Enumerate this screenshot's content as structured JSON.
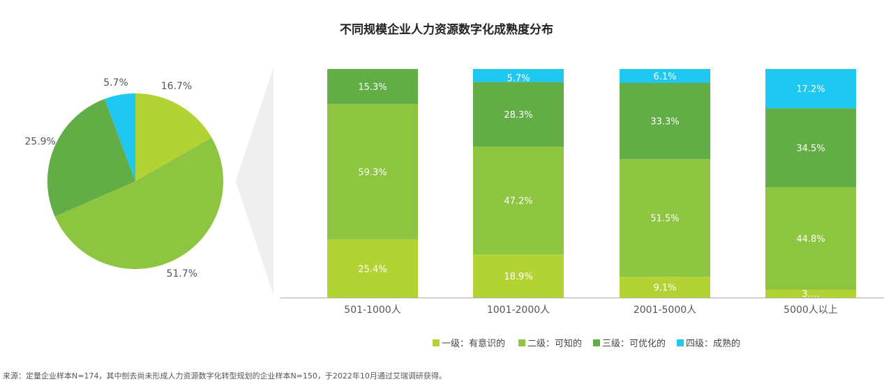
{
  "chart_data": [
    {
      "type": "pie",
      "title": "不同规模企业人力资源数字化成熟度分布",
      "slices": [
        {
          "name": "一级：有意识的",
          "value": 16.7,
          "label": "16.7%"
        },
        {
          "name": "二级：可知的",
          "value": 51.7,
          "label": "51.7%"
        },
        {
          "name": "三级：可优化的",
          "value": 25.9,
          "label": "25.9%"
        },
        {
          "name": "四级：成熟的",
          "value": 5.7,
          "label": "5.7%"
        }
      ]
    },
    {
      "type": "bar",
      "stacked": true,
      "categories": [
        "501-1000人",
        "1001-2000人",
        "2001-5000人",
        "5000人以上"
      ],
      "series": [
        {
          "name": "一级：有意识的",
          "values": [
            25.4,
            18.9,
            9.1,
            3.5
          ],
          "labels": [
            "25.4%",
            "18.9%",
            "9.1%",
            "3.…"
          ]
        },
        {
          "name": "二级：可知的",
          "values": [
            59.3,
            47.2,
            51.5,
            44.8
          ],
          "labels": [
            "59.3%",
            "47.2%",
            "51.5%",
            "44.8%"
          ]
        },
        {
          "name": "三级：可优化的",
          "values": [
            15.3,
            28.3,
            33.3,
            34.5
          ],
          "labels": [
            "15.3%",
            "28.3%",
            "33.3%",
            "34.5%"
          ]
        },
        {
          "name": "四级：成熟的",
          "values": [
            0,
            5.7,
            6.1,
            17.2
          ],
          "labels": [
            "",
            "5.7%",
            "6.1%",
            "17.2%"
          ]
        }
      ],
      "ylim": [
        0,
        100
      ],
      "legend_position": "bottom"
    }
  ],
  "colors": [
    "#b3d234",
    "#8dc540",
    "#62ad45",
    "#1fc8f1"
  ],
  "title": "不同规模企业人力资源数字化成熟度分布",
  "source": "来源：定量企业样本N=174，其中刨去尚未形成人力资源数字化转型规划的企业样本N=150，于2022年10月通过艾瑞调研获得。"
}
